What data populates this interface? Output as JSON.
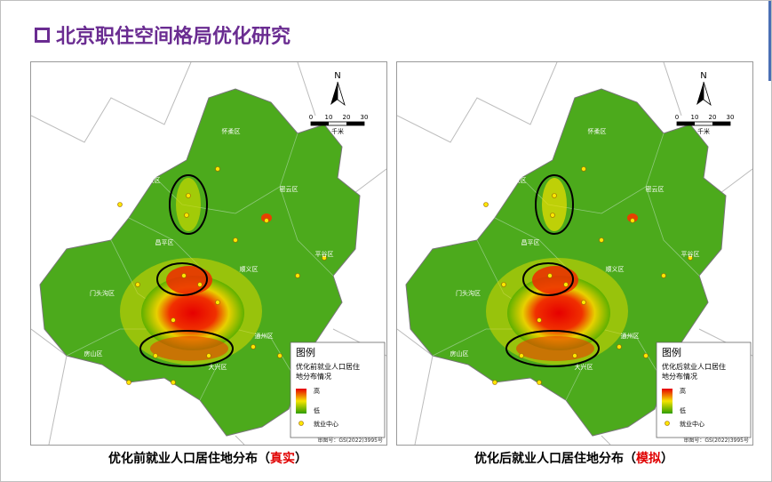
{
  "header": {
    "title": "北京职住空间格局优化研究"
  },
  "panels": [
    {
      "caption_prefix": "优化前就业人口居住地分布（",
      "caption_highlight": "真实",
      "caption_suffix": "）",
      "legend": {
        "title": "图例",
        "description": "优化前就业人口居住地分布情况",
        "high": "高",
        "low": "低",
        "center": "就业中心"
      },
      "scale": {
        "ticks": [
          "0",
          "10",
          "20",
          "30"
        ],
        "unit": "千米"
      },
      "north": "N",
      "approval": "审图号：GS(2022)3995号",
      "districts": [
        "怀柔区",
        "延庆区",
        "密云区",
        "平谷区",
        "门头沟区",
        "房山区",
        "大兴区",
        "通州区",
        "顺义区",
        "昌平区"
      ]
    },
    {
      "caption_prefix": "优化后就业人口居住地分布（",
      "caption_highlight": "模拟",
      "caption_suffix": "）",
      "legend": {
        "title": "图例",
        "description": "优化后就业人口居住地分布情况",
        "high": "高",
        "low": "低",
        "center": "就业中心"
      },
      "scale": {
        "ticks": [
          "0",
          "10",
          "20",
          "30"
        ],
        "unit": "千米"
      },
      "north": "N",
      "approval": "审图号：GS(2022)3995号",
      "districts": [
        "怀柔区",
        "延庆区",
        "密云区",
        "平谷区",
        "门头沟区",
        "房山区",
        "大兴区",
        "通州区",
        "顺义区",
        "昌平区"
      ]
    }
  ]
}
